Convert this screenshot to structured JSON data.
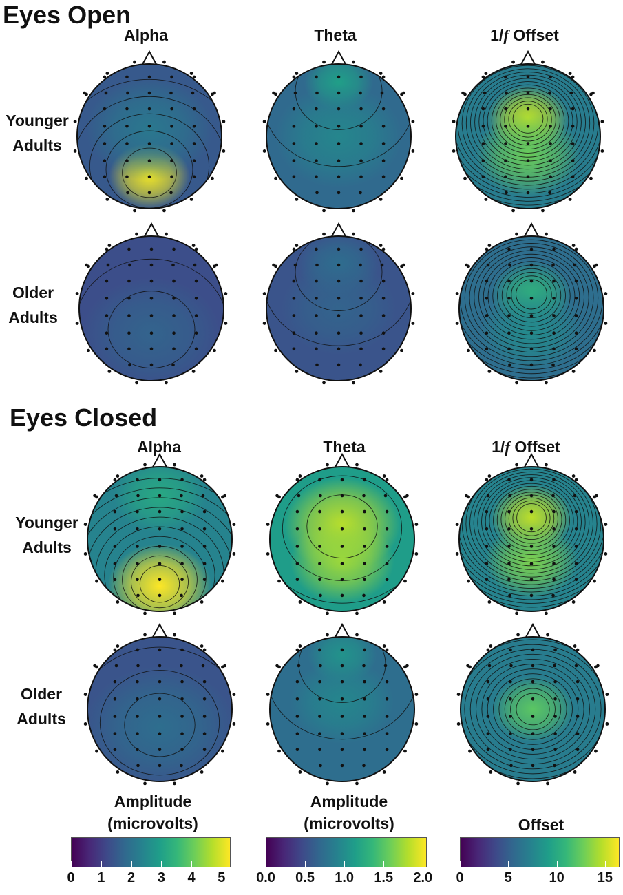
{
  "sections": [
    {
      "title": "Eyes Open",
      "columns": [
        {
          "label": "Alpha",
          "label_prefix": "",
          "label_italic": "",
          "label_suffix": ""
        },
        {
          "label": "Theta",
          "label_prefix": "",
          "label_italic": "",
          "label_suffix": ""
        },
        {
          "label": "",
          "label_prefix": "1/",
          "label_italic": "f",
          "label_suffix": " Offset"
        }
      ],
      "rows": [
        {
          "line1": "Younger",
          "line2": "Adults"
        },
        {
          "line1": "Older",
          "line2": "Adults"
        }
      ]
    },
    {
      "title": "Eyes Closed",
      "columns": [
        {
          "label": "Alpha",
          "label_prefix": "",
          "label_italic": "",
          "label_suffix": ""
        },
        {
          "label": "Theta",
          "label_prefix": "",
          "label_italic": "",
          "label_suffix": ""
        },
        {
          "label": "",
          "label_prefix": "1/",
          "label_italic": "f",
          "label_suffix": " Offset"
        }
      ],
      "rows": [
        {
          "line1": "Younger",
          "line2": "Adults"
        },
        {
          "line1": "Older",
          "line2": "Adults"
        }
      ]
    }
  ],
  "colorbars": [
    {
      "title_line1": "Amplitude",
      "title_line2": "(microvolts)",
      "min": 0,
      "max": 5.3,
      "ticks": [
        "0",
        "1",
        "2",
        "3",
        "4",
        "5"
      ],
      "tick_values": [
        0,
        1,
        2,
        3,
        4,
        5
      ]
    },
    {
      "title_line1": "Amplitude",
      "title_line2": "(microvolts)",
      "min": 0,
      "max": 2.05,
      "ticks": [
        "0.0",
        "0.5",
        "1.0",
        "1.5",
        "2.0"
      ],
      "tick_values": [
        0,
        0.5,
        1.0,
        1.5,
        2.0
      ]
    },
    {
      "title_line1": "Offset",
      "title_line2": "",
      "min": 0,
      "max": 16.5,
      "ticks": [
        "0",
        "5",
        "10",
        "15"
      ],
      "tick_values": [
        0,
        5,
        10,
        15
      ]
    }
  ],
  "colormap": {
    "name": "viridis",
    "stops": [
      "#440154",
      "#482777",
      "#3e4989",
      "#31688e",
      "#26828e",
      "#1f9e89",
      "#35b779",
      "#6ece58",
      "#b5de2b",
      "#fde725"
    ]
  },
  "topomaps": [
    {
      "section": 0,
      "row": 0,
      "col": 0,
      "base": 0.28,
      "blobs": [
        [
          0,
          0.55,
          0.35,
          0.7
        ],
        [
          0,
          -0.1,
          0.55,
          0.12
        ]
      ],
      "contours": 5
    },
    {
      "section": 0,
      "row": 0,
      "col": 1,
      "base": 0.34,
      "blobs": [
        [
          0,
          -0.75,
          0.3,
          0.22
        ],
        [
          0,
          0.0,
          0.55,
          0.12
        ]
      ],
      "contours": 2
    },
    {
      "section": 0,
      "row": 0,
      "col": 2,
      "base": 0.42,
      "blobs": [
        [
          0,
          -0.25,
          0.35,
          0.48
        ],
        [
          0,
          0.25,
          0.45,
          0.35
        ]
      ],
      "contours": 22
    },
    {
      "section": 1,
      "row": 1,
      "col": 0,
      "base": 0.26,
      "blobs": [
        [
          0,
          0.25,
          0.65,
          0.1
        ]
      ],
      "contours": 3
    },
    {
      "section": 0,
      "row": 1,
      "col": 1,
      "base": 0.26,
      "blobs": [
        [
          0,
          -0.6,
          0.35,
          0.1
        ],
        [
          0,
          0.0,
          0.5,
          0.06
        ]
      ],
      "contours": 2
    },
    {
      "section": 0,
      "row": 1,
      "col": 2,
      "base": 0.36,
      "blobs": [
        [
          0,
          -0.2,
          0.35,
          0.28
        ],
        [
          0,
          0.3,
          0.45,
          0.12
        ]
      ],
      "contours": 20
    },
    {
      "section": 1,
      "row": 0,
      "col": 0,
      "base": 0.45,
      "blobs": [
        [
          0,
          0.65,
          0.45,
          0.55
        ],
        [
          0,
          -0.6,
          0.4,
          0.15
        ]
      ],
      "contours": 10
    },
    {
      "section": 1,
      "row": 0,
      "col": 1,
      "base": 0.55,
      "blobs": [
        [
          0,
          -0.2,
          0.5,
          0.35
        ],
        [
          0,
          0.3,
          0.45,
          0.3
        ]
      ],
      "contours": 3
    },
    {
      "section": 1,
      "row": 0,
      "col": 2,
      "base": 0.45,
      "blobs": [
        [
          0,
          -0.3,
          0.35,
          0.45
        ],
        [
          0,
          0.3,
          0.4,
          0.35
        ]
      ],
      "contours": 24
    },
    {
      "section": 0,
      "row": 1,
      "col": 0,
      "base": 0.24,
      "blobs": [
        [
          0,
          0.35,
          0.6,
          0.08
        ]
      ],
      "contours": 2
    },
    {
      "section": 1,
      "row": 1,
      "col": 1,
      "base": 0.36,
      "blobs": [
        [
          0,
          -0.75,
          0.3,
          0.15
        ],
        [
          0,
          -0.1,
          0.45,
          0.1
        ]
      ],
      "contours": 2
    },
    {
      "section": 1,
      "row": 1,
      "col": 2,
      "base": 0.42,
      "blobs": [
        [
          0,
          0.0,
          0.35,
          0.32
        ]
      ],
      "contours": 16
    }
  ]
}
